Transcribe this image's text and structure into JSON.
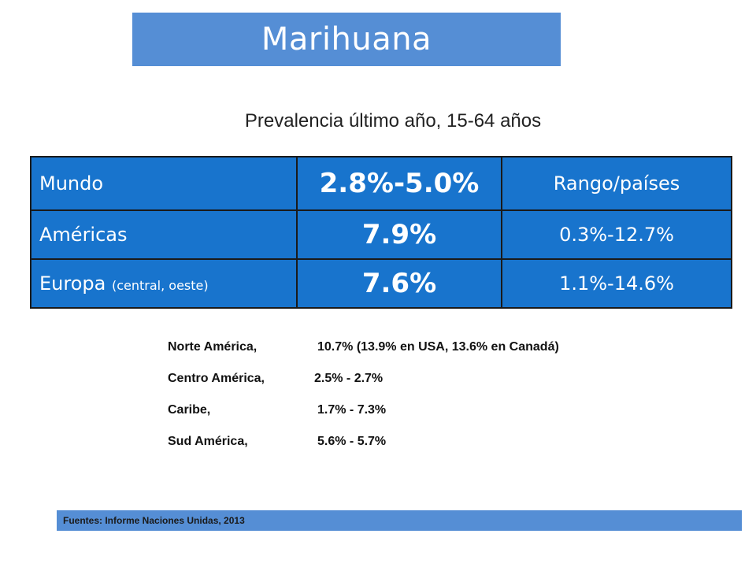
{
  "title": "Marihuana",
  "subtitle": "Prevalencia último año, 15-64 años",
  "table": {
    "rows": [
      {
        "region": "Mundo",
        "note": "",
        "value": "2.8%-5.0%",
        "range": "Rango/países"
      },
      {
        "region": "Américas",
        "note": "",
        "value": "7.9%",
        "range": "0.3%-12.7%"
      },
      {
        "region": "Europa",
        "note": "(central, oeste)",
        "value": "7.6%",
        "range": "1.1%-14.6%"
      }
    ],
    "colors": {
      "cell_bg": "#1874cd",
      "border": "#1a1a1a",
      "text": "#ffffff"
    }
  },
  "regions": [
    {
      "name": "Norte América,",
      "value": "10.7% (13.9% en USA, 13.6% en Canadá)"
    },
    {
      "name": "Centro América,",
      "value": "2.5% - 2.7%"
    },
    {
      "name": "Caribe,",
      "value": "1.7% - 7.3%"
    },
    {
      "name": "Sud América,",
      "value": "5.6% - 5.7%"
    }
  ],
  "footer": "Fuentes: Informe Naciones Unidas, 2013",
  "colors": {
    "banner": "#558ed5"
  }
}
